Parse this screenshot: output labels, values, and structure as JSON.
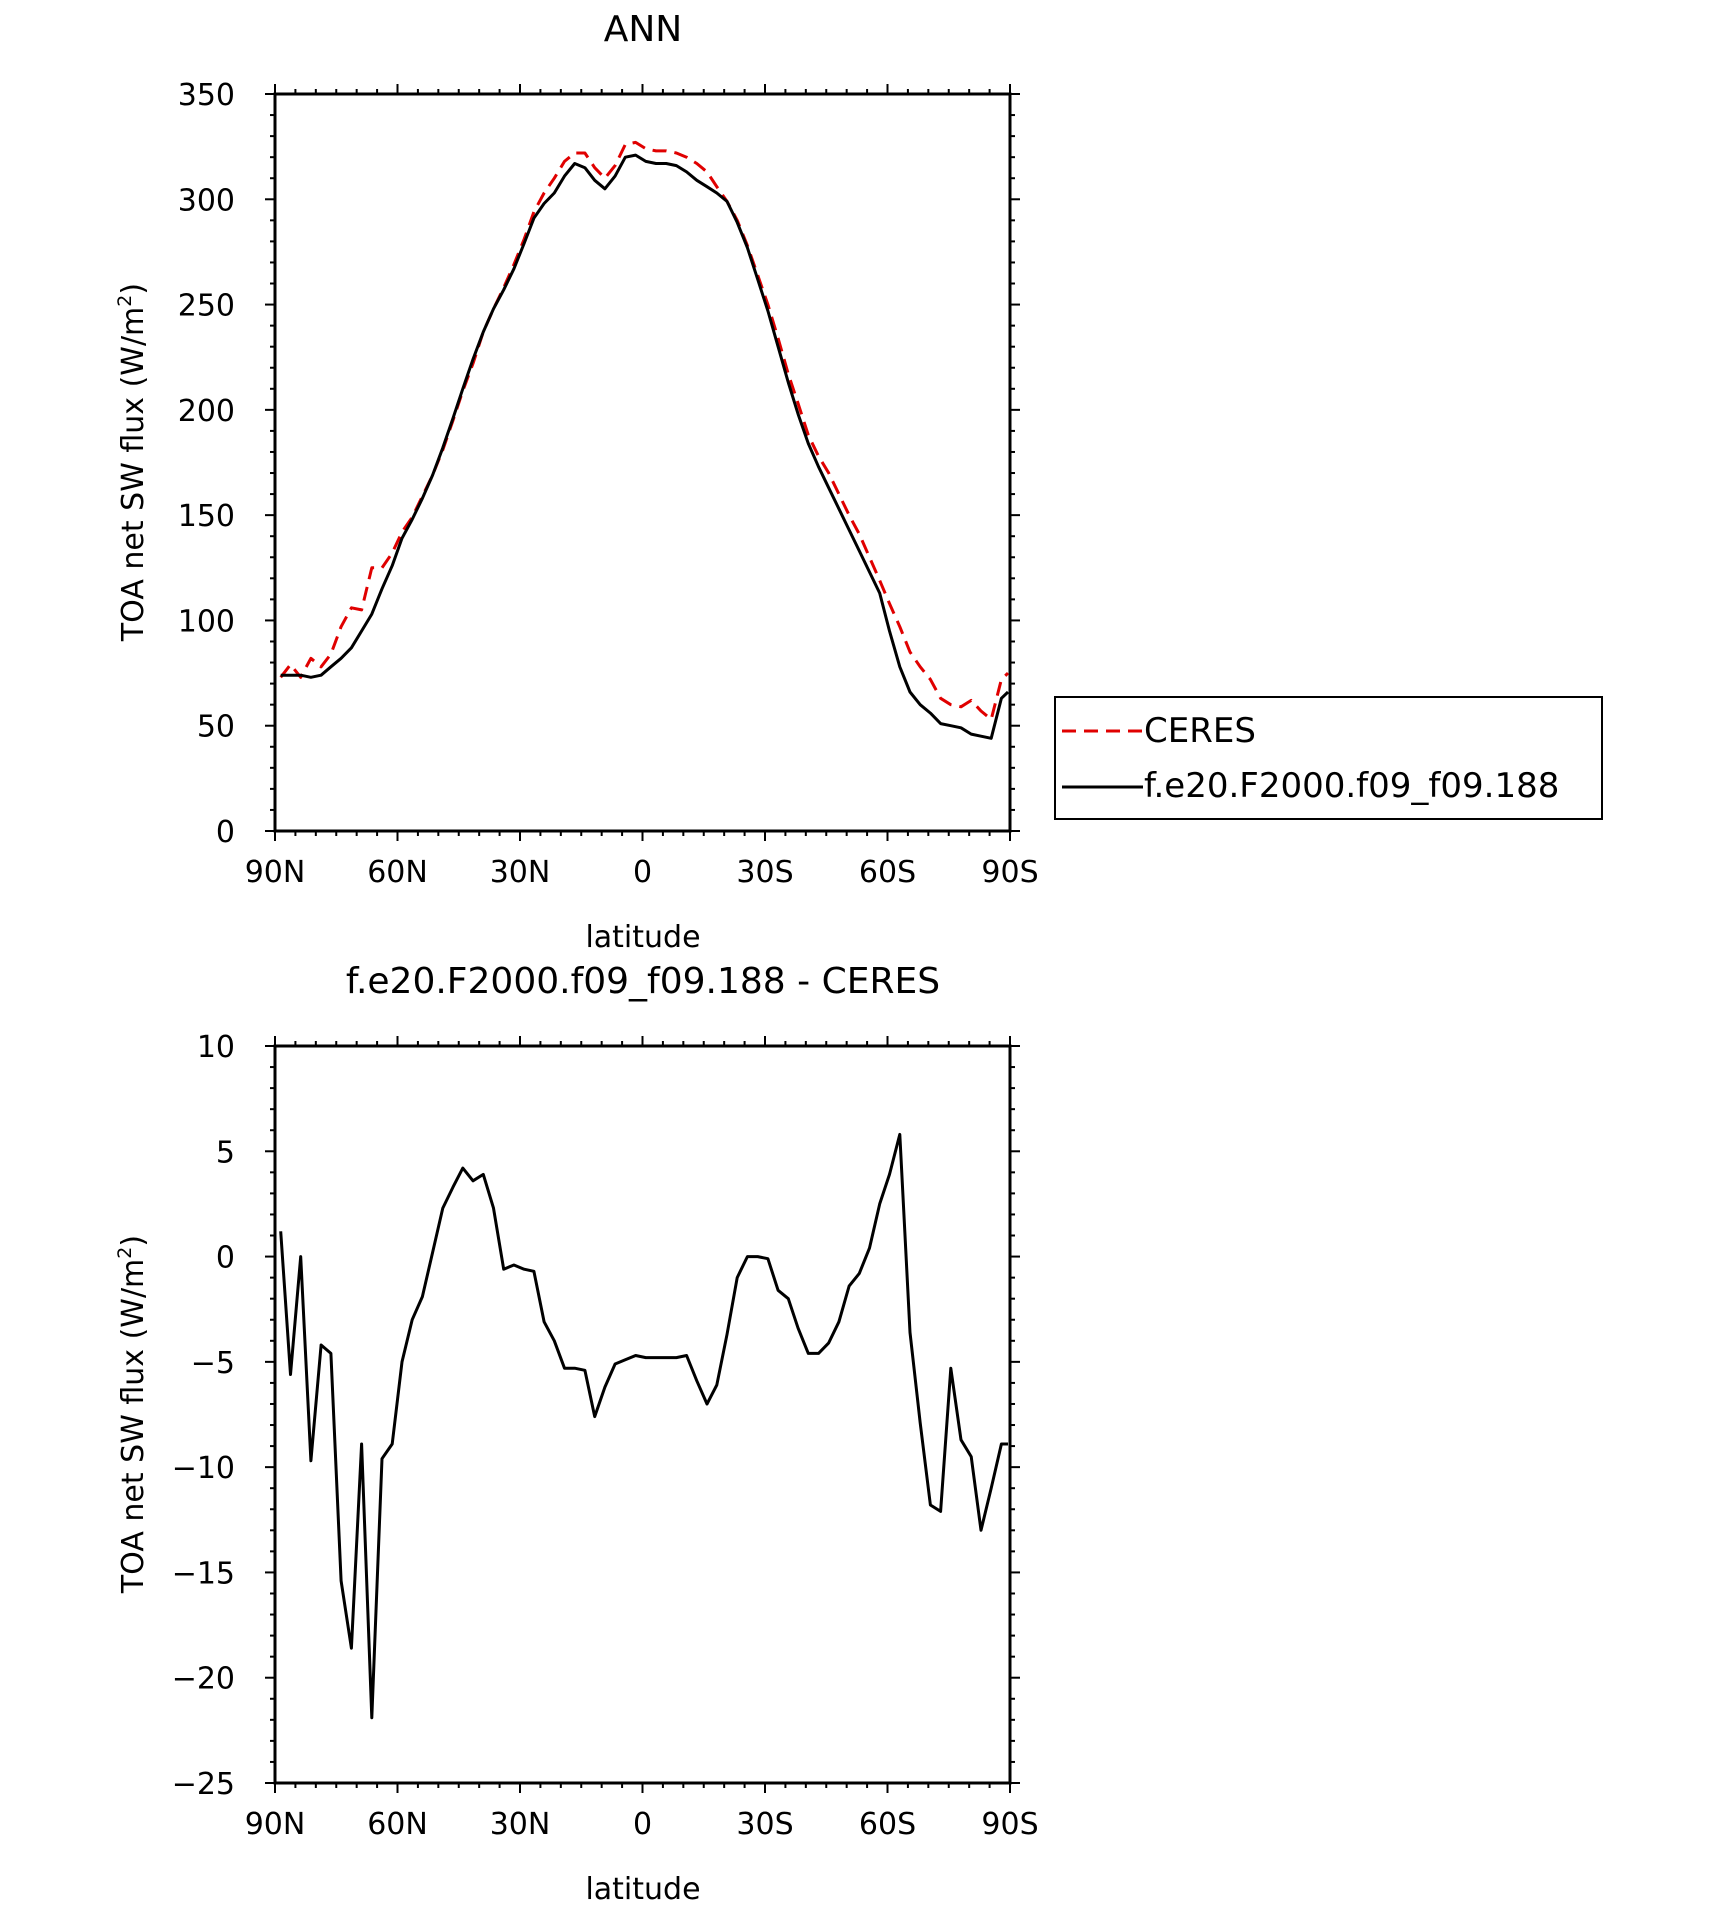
{
  "chart_data": [
    {
      "type": "line",
      "title": "ANN",
      "xlabel": "latitude",
      "ylabel": "TOA net SW flux (W/m",
      "ylabel_sup": "2",
      "ylabel_tail": ")",
      "x_ticks": [
        {
          "value": 90,
          "label": "90N"
        },
        {
          "value": 60,
          "label": "60N"
        },
        {
          "value": 30,
          "label": "30N"
        },
        {
          "value": 0,
          "label": "0"
        },
        {
          "value": -30,
          "label": "30S"
        },
        {
          "value": -60,
          "label": "60S"
        },
        {
          "value": -90,
          "label": "90S"
        }
      ],
      "xlim": [
        90,
        -90
      ],
      "ylim": [
        0,
        350
      ],
      "y_ticks": [
        0,
        50,
        100,
        150,
        200,
        250,
        300,
        350
      ],
      "legend_placement": "right",
      "x": [
        88.6,
        86.2,
        83.7,
        81.2,
        78.7,
        76.3,
        73.8,
        71.3,
        68.8,
        66.3,
        63.8,
        61.3,
        58.9,
        56.4,
        53.9,
        51.4,
        48.9,
        46.4,
        44.0,
        41.5,
        39.0,
        36.5,
        34.0,
        31.5,
        29.0,
        26.6,
        24.1,
        21.6,
        19.1,
        16.6,
        14.1,
        11.7,
        9.2,
        6.7,
        4.2,
        1.7,
        -0.8,
        -3.3,
        -5.8,
        -8.3,
        -10.8,
        -13.3,
        -15.8,
        -18.2,
        -20.7,
        -23.2,
        -25.7,
        -28.2,
        -30.7,
        -33.2,
        -35.7,
        -38.1,
        -40.6,
        -43.1,
        -45.6,
        -48.1,
        -50.6,
        -53.1,
        -55.6,
        -58.1,
        -60.5,
        -63.0,
        -65.5,
        -68.0,
        -70.5,
        -73.0,
        -75.5,
        -78.0,
        -80.5,
        -82.9,
        -85.4,
        -87.9,
        -89.5
      ],
      "series": [
        {
          "name": "CERES",
          "color": "#e00000",
          "dash": "dashed",
          "values": [
            73,
            79,
            73,
            82,
            78,
            84,
            97,
            106,
            105,
            125,
            125,
            132,
            142,
            149,
            159,
            169,
            181,
            195,
            209,
            222,
            237,
            248,
            258,
            269,
            281,
            294,
            303,
            310,
            318,
            322,
            322,
            315,
            310,
            316,
            326,
            327,
            324,
            323,
            323,
            322,
            320,
            317,
            313,
            306,
            299,
            290,
            278,
            264,
            250,
            234,
            217,
            203,
            188,
            178,
            170,
            160,
            150,
            141,
            130,
            119,
            108,
            97,
            85,
            78,
            72,
            63,
            60,
            59,
            62,
            57,
            53,
            72,
            75
          ]
        },
        {
          "name": "f.e20.F2000.f09_f09.188",
          "color": "#000000",
          "dash": "solid",
          "values": [
            74,
            74,
            74,
            73,
            74,
            78,
            82,
            87,
            95,
            103,
            115,
            126,
            139,
            148,
            158,
            169,
            182,
            196,
            210,
            224,
            237,
            248,
            257,
            267,
            279,
            291,
            298,
            303,
            311,
            317,
            315,
            309,
            305,
            311,
            320,
            321,
            318,
            317,
            317,
            316,
            313,
            309,
            306,
            303,
            299,
            289,
            277,
            262,
            247,
            230,
            213,
            198,
            184,
            173,
            163,
            153,
            143,
            133,
            123,
            113,
            95,
            78,
            66,
            60,
            56,
            51,
            50,
            49,
            46,
            45,
            44,
            63,
            66
          ]
        }
      ]
    },
    {
      "type": "line",
      "title": "f.e20.F2000.f09_f09.188 - CERES",
      "xlabel": "latitude",
      "ylabel": "TOA net SW flux (W/m",
      "ylabel_sup": "2",
      "ylabel_tail": ")",
      "x_ticks": [
        {
          "value": 90,
          "label": "90N"
        },
        {
          "value": 60,
          "label": "60N"
        },
        {
          "value": 30,
          "label": "30N"
        },
        {
          "value": 0,
          "label": "0"
        },
        {
          "value": -30,
          "label": "30S"
        },
        {
          "value": -60,
          "label": "60S"
        },
        {
          "value": -90,
          "label": "90S"
        }
      ],
      "xlim": [
        90,
        -90
      ],
      "ylim": [
        -25,
        10
      ],
      "y_ticks": [
        -25,
        -20,
        -15,
        -10,
        -5,
        0,
        5,
        10
      ],
      "series": [
        {
          "name": "",
          "color": "#000000",
          "dash": "solid",
          "x": [
            88.6,
            86.2,
            83.7,
            81.2,
            78.7,
            76.3,
            73.8,
            71.3,
            68.8,
            66.3,
            63.8,
            61.3,
            58.9,
            56.4,
            53.9,
            51.4,
            48.9,
            46.4,
            44.0,
            41.5,
            39.0,
            36.5,
            34.0,
            31.5,
            29.0,
            26.6,
            24.1,
            21.6,
            19.1,
            16.6,
            14.1,
            11.7,
            9.2,
            6.7,
            4.2,
            1.7,
            -0.8,
            -3.3,
            -5.8,
            -8.3,
            -10.8,
            -13.3,
            -15.8,
            -18.2,
            -20.7,
            -23.2,
            -25.7,
            -28.2,
            -30.7,
            -33.2,
            -35.7,
            -38.1,
            -40.6,
            -43.1,
            -45.6,
            -48.1,
            -50.6,
            -53.1,
            -55.6,
            -58.1,
            -60.5,
            -63.0,
            -65.5,
            -68.0,
            -70.5,
            -73.0,
            -75.5,
            -78.0,
            -80.5,
            -82.9,
            -85.4,
            -87.9,
            -89.5
          ],
          "values": [
            1.2,
            -5.6,
            0.0,
            -9.7,
            -4.2,
            -4.6,
            -15.4,
            -18.6,
            -8.9,
            -21.9,
            -9.6,
            -8.9,
            -5.0,
            -3.0,
            -1.9,
            0.2,
            2.3,
            3.3,
            4.2,
            3.6,
            3.9,
            2.3,
            -0.6,
            -0.4,
            -0.6,
            -0.7,
            -3.1,
            -4.0,
            -5.3,
            -5.3,
            -5.4,
            -7.6,
            -6.2,
            -5.1,
            -4.9,
            -4.7,
            -4.8,
            -4.8,
            -4.8,
            -4.8,
            -4.7,
            -5.9,
            -7.0,
            -6.1,
            -3.7,
            -1.0,
            0.0,
            0.0,
            -0.1,
            -1.6,
            -2.0,
            -3.4,
            -4.6,
            -4.6,
            -4.1,
            -3.1,
            -1.4,
            -0.8,
            0.4,
            2.5,
            3.9,
            5.8,
            -3.6,
            -7.9,
            -11.8,
            -12.1,
            -5.3,
            -8.7,
            -9.5,
            -13.0,
            -11.0,
            -8.9,
            -8.9
          ]
        }
      ]
    }
  ],
  "legend": {
    "entries": [
      {
        "label": "CERES"
      },
      {
        "label": "f.e20.F2000.f09_f09.188"
      }
    ]
  }
}
